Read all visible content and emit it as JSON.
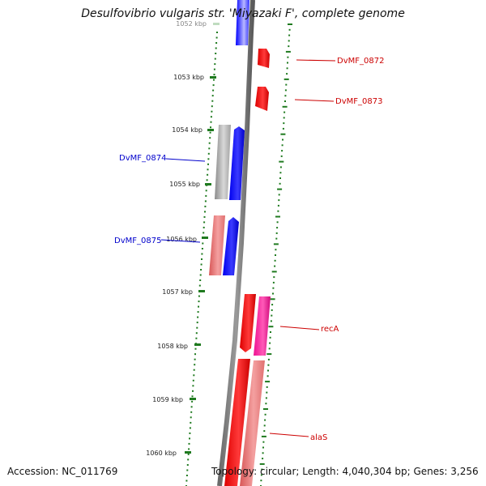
{
  "title": "Desulfovibrio vulgaris str. 'Miyazaki F', complete genome",
  "accession": "Accession: NC_011769",
  "summary": "Topology: circular; Length: 4,040,304 bp; Genes: 3,256",
  "ticks": [
    {
      "label": "1052 kbp"
    },
    {
      "label": "1053 kbp"
    },
    {
      "label": "1054 kbp"
    },
    {
      "label": "1055 kbp"
    },
    {
      "label": "1056 kbp"
    },
    {
      "label": "1057 kbp"
    },
    {
      "label": "1058 kbp"
    },
    {
      "label": "1059 kbp"
    },
    {
      "label": "1060 kbp"
    }
  ],
  "gene_labels": [
    {
      "name": "DvMF_0872",
      "color": "#cc0000"
    },
    {
      "name": "DvMF_0873",
      "color": "#cc0000"
    },
    {
      "name": "DvMF_0874",
      "color": "#0000cc"
    },
    {
      "name": "DvMF_0875",
      "color": "#0000cc"
    },
    {
      "name": "recA",
      "color": "#cc0000"
    },
    {
      "name": "alaS",
      "color": "#cc0000"
    }
  ]
}
